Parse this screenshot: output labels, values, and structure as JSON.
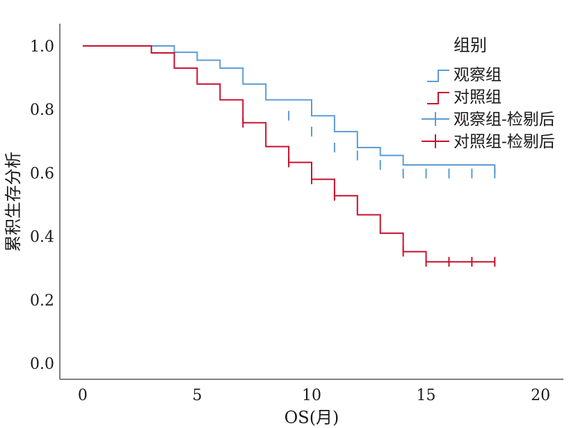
{
  "chart_data": {
    "type": "line",
    "title": "",
    "xlabel": "OS(月)",
    "ylabel": "累积生存分析",
    "xlim": [
      -1,
      21
    ],
    "ylim": [
      -0.05,
      1.07
    ],
    "xticks": [
      "0",
      "5",
      "10",
      "15",
      "20"
    ],
    "yticks": [
      "0.0",
      "0.2",
      "0.4",
      "0.6",
      "0.8",
      "1.0"
    ],
    "grid": false,
    "legend": {
      "title": "组别",
      "placement": "top-right",
      "entries": [
        "观察组",
        "对照组",
        "观察组-检剔后",
        "对照组-检剔后"
      ]
    },
    "series": [
      {
        "name": "观察组",
        "color": "#5b9bd5",
        "steps": [
          [
            0,
            1.0
          ],
          [
            4,
            0.98
          ],
          [
            5,
            0.955
          ],
          [
            6,
            0.93
          ],
          [
            7,
            0.88
          ],
          [
            8,
            0.83
          ],
          [
            10,
            0.78
          ],
          [
            11,
            0.73
          ],
          [
            12,
            0.68
          ],
          [
            13,
            0.655
          ],
          [
            14,
            0.625
          ],
          [
            18,
            0.598
          ]
        ],
        "censored": [
          [
            9,
            0.78
          ],
          [
            10,
            0.73
          ],
          [
            11,
            0.68
          ],
          [
            12,
            0.655
          ],
          [
            13,
            0.625
          ],
          [
            14,
            0.598
          ],
          [
            15,
            0.598
          ],
          [
            16,
            0.598
          ],
          [
            17,
            0.598
          ],
          [
            18,
            0.598
          ]
        ]
      },
      {
        "name": "对照组",
        "color": "#c8102e",
        "steps": [
          [
            0,
            1.0
          ],
          [
            3,
            0.978
          ],
          [
            4,
            0.93
          ],
          [
            5,
            0.88
          ],
          [
            6,
            0.83
          ],
          [
            7,
            0.758
          ],
          [
            8,
            0.683
          ],
          [
            9,
            0.633
          ],
          [
            10,
            0.58
          ],
          [
            11,
            0.528
          ],
          [
            12,
            0.468
          ],
          [
            13,
            0.41
          ],
          [
            14,
            0.352
          ],
          [
            15,
            0.32
          ],
          [
            18,
            0.32
          ]
        ],
        "censored": [
          [
            7,
            0.758
          ],
          [
            9,
            0.633
          ],
          [
            10,
            0.58
          ],
          [
            11,
            0.528
          ],
          [
            14,
            0.352
          ],
          [
            15,
            0.32
          ],
          [
            16,
            0.32
          ],
          [
            17,
            0.32
          ],
          [
            18,
            0.32
          ]
        ]
      }
    ]
  }
}
